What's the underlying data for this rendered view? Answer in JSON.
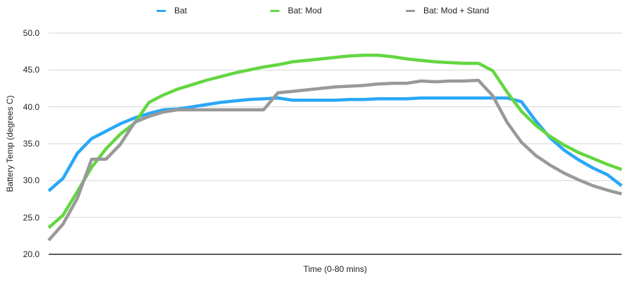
{
  "chart_data": {
    "type": "line",
    "title": "",
    "xlabel": "Time (0-80 mins)",
    "ylabel": "Battery Temp (degrees C)",
    "ylim": [
      20,
      50
    ],
    "yticks": [
      "20.0",
      "25.0",
      "30.0",
      "35.0",
      "40.0",
      "45.0",
      "50.0"
    ],
    "grid": true,
    "legend_position": "top",
    "x": [
      0,
      2,
      4,
      6,
      8,
      10,
      12,
      14,
      16,
      18,
      20,
      22,
      24,
      26,
      28,
      30,
      32,
      34,
      36,
      38,
      40,
      42,
      44,
      46,
      48,
      50,
      52,
      54,
      56,
      58,
      60,
      62,
      64,
      66,
      68,
      70,
      72,
      74,
      76,
      78,
      80
    ],
    "series": [
      {
        "name": "Bat",
        "color": "#2aa7f7",
        "values": [
          28.6,
          30.3,
          33.7,
          35.7,
          36.7,
          37.7,
          38.5,
          39.1,
          39.6,
          39.7,
          40.0,
          40.3,
          40.6,
          40.8,
          41.0,
          41.1,
          41.2,
          40.9,
          40.9,
          40.9,
          40.9,
          41.0,
          41.0,
          41.1,
          41.1,
          41.1,
          41.2,
          41.2,
          41.2,
          41.2,
          41.2,
          41.2,
          41.2,
          40.7,
          38.1,
          35.8,
          34.1,
          32.8,
          31.7,
          30.8,
          29.3
        ]
      },
      {
        "name": "Bat: Mod",
        "color": "#63d640",
        "values": [
          23.6,
          25.3,
          28.5,
          31.8,
          34.3,
          36.3,
          37.8,
          40.6,
          41.6,
          42.4,
          43.0,
          43.6,
          44.1,
          44.6,
          45.0,
          45.4,
          45.7,
          46.1,
          46.3,
          46.5,
          46.7,
          46.9,
          47.0,
          47.0,
          46.8,
          46.5,
          46.3,
          46.1,
          46.0,
          45.9,
          45.9,
          44.9,
          42.0,
          39.4,
          37.5,
          36.0,
          34.8,
          33.8,
          33.0,
          32.2,
          31.5
        ]
      },
      {
        "name": "Bat: Mod + Stand",
        "color": "#999999",
        "values": [
          21.9,
          24.1,
          27.6,
          32.9,
          32.9,
          34.9,
          37.9,
          38.7,
          39.3,
          39.6,
          39.6,
          39.6,
          39.6,
          39.6,
          39.6,
          39.6,
          41.9,
          42.1,
          42.3,
          42.5,
          42.7,
          42.8,
          42.9,
          43.1,
          43.2,
          43.2,
          43.5,
          43.4,
          43.5,
          43.5,
          43.6,
          41.5,
          37.9,
          35.2,
          33.4,
          32.1,
          31.0,
          30.1,
          29.3,
          28.7,
          28.2
        ]
      }
    ]
  },
  "legend": {
    "items": [
      {
        "label": "Bat",
        "color": "#2aa7f7"
      },
      {
        "label": "Bat: Mod",
        "color": "#63d640"
      },
      {
        "label": "Bat: Mod + Stand",
        "color": "#999999"
      }
    ]
  },
  "axes": {
    "x_label": "Time (0-80 mins)",
    "y_label": "Battery Temp (degrees C)",
    "y_ticks": [
      "50.0",
      "45.0",
      "40.0",
      "35.0",
      "30.0",
      "25.0",
      "20.0"
    ]
  }
}
